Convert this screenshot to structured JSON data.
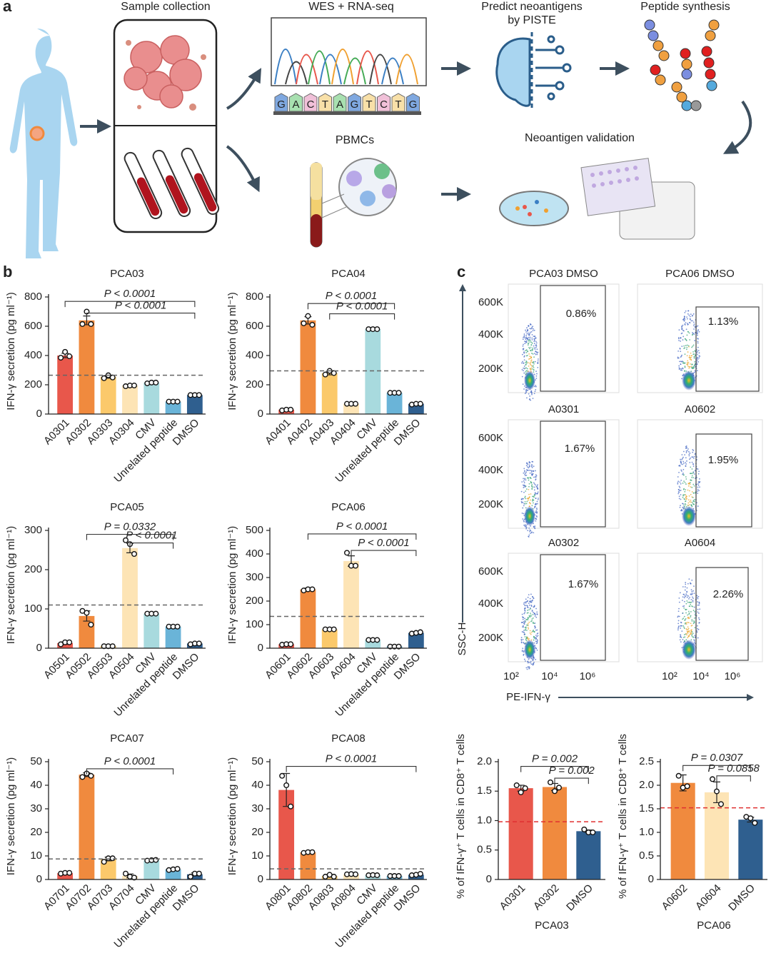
{
  "panel_labels": [
    "a",
    "b",
    "c"
  ],
  "diagram": {
    "sample": "Sample collection",
    "seq": "WES + RNA-seq",
    "predict": [
      "Predict neoantigens",
      "by PISTE"
    ],
    "synthesis": "Peptide synthesis",
    "pbmc": "PBMCs",
    "validation": "Neoantigen validation",
    "bases": [
      "G",
      "A",
      "C",
      "T",
      "A",
      "G",
      "T",
      "C",
      "T",
      "G"
    ]
  },
  "flow": {
    "y_axis_label": "SSC-H",
    "x_axis_label": "PE-IFN-γ",
    "yticks": [
      "600K",
      "400K",
      "200K"
    ],
    "xticks": [
      "10²",
      "10⁴",
      "10⁶"
    ],
    "panels": [
      {
        "title": "PCA03  DMSO",
        "percent": "0.86%"
      },
      {
        "title": "PCA06  DMSO",
        "percent": "1.13%"
      },
      {
        "title": "A0301",
        "percent": "1.67%"
      },
      {
        "title": "A0602",
        "percent": "1.95%"
      },
      {
        "title": "A0302",
        "percent": "1.67%"
      },
      {
        "title": "A0604",
        "percent": "2.26%"
      }
    ]
  },
  "chart_data": [
    {
      "type": "bar",
      "title": "PCA03",
      "y_axis_label": "IFN-γ secretion (pg ml⁻¹)",
      "categories": [
        "A0301",
        "A0302",
        "A0303",
        "A0304",
        "CMV",
        "Unrelated peptide",
        "DMSO"
      ],
      "values": [
        400,
        640,
        255,
        195,
        215,
        85,
        130
      ],
      "errors": [
        15,
        30,
        10,
        5,
        5,
        3,
        3
      ],
      "points": [
        [
          385,
          425,
          395
        ],
        [
          615,
          700,
          615
        ],
        [
          245,
          265,
          250
        ],
        [
          190,
          195,
          195
        ],
        [
          210,
          215,
          215
        ],
        [
          85,
          85,
          85
        ],
        [
          130,
          130,
          130
        ]
      ],
      "colors": [
        "#e8574b",
        "#f08a3e",
        "#fbc96b",
        "#fde4b5",
        "#a8dade",
        "#6ab4d8",
        "#2f5f8f"
      ],
      "ylim": [
        0,
        800
      ],
      "yticks": [
        0,
        200,
        400,
        600,
        800
      ],
      "threshold": 265,
      "threshold_color": "#666666",
      "annotations": [
        {
          "label": "P < 0.0001",
          "between": [
            "A0301",
            "DMSO"
          ],
          "y": 770
        },
        {
          "label": "P < 0.0001",
          "between": [
            "A0302",
            "DMSO"
          ],
          "y": 690
        }
      ]
    },
    {
      "type": "bar",
      "title": "PCA04",
      "y_axis_label": "IFN-γ secretion (pg ml⁻¹)",
      "categories": [
        "A0401",
        "A0402",
        "A0403",
        "A0404",
        "CMV",
        "Unrelated peptide",
        "DMSO"
      ],
      "values": [
        30,
        640,
        280,
        70,
        580,
        145,
        70
      ],
      "errors": [
        5,
        25,
        12,
        3,
        3,
        3,
        5
      ],
      "points": [
        [
          25,
          30,
          30
        ],
        [
          620,
          670,
          610
        ],
        [
          270,
          295,
          280
        ],
        [
          70,
          70,
          70
        ],
        [
          580,
          580,
          580
        ],
        [
          145,
          145,
          145
        ],
        [
          65,
          70,
          70
        ]
      ],
      "colors": [
        "#e8574b",
        "#f08a3e",
        "#fbc96b",
        "#fde4b5",
        "#a8dade",
        "#6ab4d8",
        "#2f5f8f"
      ],
      "ylim": [
        0,
        800
      ],
      "yticks": [
        0,
        200,
        400,
        600,
        800
      ],
      "threshold": 295,
      "threshold_color": "#666666",
      "annotations": [
        {
          "label": "P < 0.0001",
          "between": [
            "A0402",
            "Unrelated peptide"
          ],
          "y": 755
        },
        {
          "label": "P < 0.0001",
          "between": [
            "A0403",
            "Unrelated peptide"
          ],
          "y": 685
        }
      ]
    },
    {
      "type": "bar",
      "title": "PCA05",
      "y_axis_label": "IFN-γ secretion (pg ml⁻¹)",
      "categories": [
        "A0501",
        "A0502",
        "A0503",
        "A0504",
        "CMV",
        "Unrelated peptide",
        "DMSO"
      ],
      "values": [
        13,
        82,
        6,
        255,
        88,
        55,
        12
      ],
      "errors": [
        3,
        13,
        1,
        12,
        2,
        2,
        2
      ],
      "points": [
        [
          10,
          15,
          15
        ],
        [
          95,
          90,
          60
        ],
        [
          5,
          5,
          5
        ],
        [
          275,
          265,
          240
        ],
        [
          88,
          88,
          88
        ],
        [
          55,
          55,
          55
        ],
        [
          10,
          12,
          12
        ]
      ],
      "colors": [
        "#e8574b",
        "#f08a3e",
        "#fbc96b",
        "#fde4b5",
        "#a8dade",
        "#6ab4d8",
        "#2f5f8f"
      ],
      "ylim": [
        0,
        300
      ],
      "yticks": [
        0,
        100,
        200,
        300
      ],
      "threshold": 110,
      "threshold_color": "#666666",
      "annotations": [
        {
          "label": "P = 0.0332",
          "between": [
            "A0502",
            "Unrelated peptide"
          ],
          "y": 290
        },
        {
          "label": "P < 0.0001",
          "between": [
            "A0504",
            "Unrelated peptide"
          ],
          "y": 268
        }
      ]
    },
    {
      "type": "bar",
      "title": "PCA06",
      "y_axis_label": "IFN-γ secretion (pg ml⁻¹)",
      "categories": [
        "A0601",
        "A0602",
        "A0603",
        "A0604",
        "CMV",
        "Unrelated peptide",
        "DMSO"
      ],
      "values": [
        17,
        250,
        80,
        370,
        35,
        8,
        65
      ],
      "errors": [
        2,
        5,
        2,
        22,
        2,
        1,
        5
      ],
      "points": [
        [
          15,
          17,
          17
        ],
        [
          245,
          250,
          250
        ],
        [
          80,
          80,
          80
        ],
        [
          405,
          350,
          350
        ],
        [
          35,
          35,
          35
        ],
        [
          7,
          7,
          7
        ],
        [
          62,
          65,
          68
        ]
      ],
      "colors": [
        "#e8574b",
        "#f08a3e",
        "#fbc96b",
        "#fde4b5",
        "#a8dade",
        "#6ab4d8",
        "#2f5f8f"
      ],
      "ylim": [
        0,
        500
      ],
      "yticks": [
        0,
        100,
        200,
        300,
        400,
        500
      ],
      "threshold": 135,
      "threshold_color": "#666666",
      "annotations": [
        {
          "label": "P < 0.0001",
          "between": [
            "A0602",
            "DMSO"
          ],
          "y": 485
        },
        {
          "label": "P < 0.0001",
          "between": [
            "A0604",
            "DMSO"
          ],
          "y": 415
        }
      ]
    },
    {
      "type": "bar",
      "title": "PCA07",
      "y_axis_label": "IFN-γ secretion (pg ml⁻¹)",
      "categories": [
        "A0701",
        "A0702",
        "A0703",
        "A0704",
        "CMV",
        "Unrelated peptide",
        "DMSO"
      ],
      "values": [
        2.7,
        44.5,
        8.7,
        1.5,
        8.2,
        4.3,
        2.2
      ],
      "errors": [
        0.3,
        0.8,
        0.8,
        0.8,
        0.3,
        0.3,
        0.6
      ],
      "points": [
        [
          2.5,
          2.8,
          2.8
        ],
        [
          43.5,
          45,
          44
        ],
        [
          7.5,
          9,
          9
        ],
        [
          2.5,
          1.2,
          0.8
        ],
        [
          8,
          8.2,
          8.3
        ],
        [
          4,
          4.3,
          4.5
        ],
        [
          1.2,
          2.5,
          2.5
        ]
      ],
      "colors": [
        "#e8574b",
        "#f08a3e",
        "#fbc96b",
        "#fde4b5",
        "#a8dade",
        "#6ab4d8",
        "#2f5f8f"
      ],
      "ylim": [
        0,
        50
      ],
      "yticks": [
        0,
        10,
        20,
        30,
        40,
        50
      ],
      "threshold": 8.7,
      "threshold_color": "#666666",
      "annotations": [
        {
          "label": "P < 0.0001",
          "between": [
            "A0702",
            "Unrelated peptide"
          ],
          "y": 47
        }
      ]
    },
    {
      "type": "bar",
      "title": "PCA08",
      "y_axis_label": "IFN-γ secretion (pg ml⁻¹)",
      "categories": [
        "A0801",
        "A0802",
        "A0803",
        "A0804",
        "CMV",
        "Unrelated peptide",
        "DMSO"
      ],
      "values": [
        38,
        11.5,
        1.5,
        2.2,
        1.8,
        1.5,
        2
      ],
      "errors": [
        7,
        0.3,
        0.5,
        0.1,
        0.1,
        0.1,
        0.3
      ],
      "points": [
        [
          44,
          40,
          31
        ],
        [
          11.3,
          11.6,
          11.6
        ],
        [
          1.2,
          2,
          1.2
        ],
        [
          2.2,
          2.3,
          2.2
        ],
        [
          1.8,
          1.9,
          1.8
        ],
        [
          1.5,
          1.5,
          1.5
        ],
        [
          1.8,
          2,
          2.4
        ]
      ],
      "colors": [
        "#e8574b",
        "#f08a3e",
        "#fbc96b",
        "#fde4b5",
        "#a8dade",
        "#6ab4d8",
        "#2f5f8f"
      ],
      "ylim": [
        0,
        50
      ],
      "yticks": [
        0,
        10,
        20,
        30,
        40,
        50
      ],
      "threshold": 4.5,
      "threshold_color": "#666666",
      "annotations": [
        {
          "label": "P < 0.0001",
          "between": [
            "A0801",
            "DMSO"
          ],
          "y": 48
        }
      ]
    },
    {
      "type": "bar",
      "x_axis_label": "PCA03",
      "y_axis_label": "% of IFN-γ⁺ T cells in CD8⁺ T cells",
      "categories": [
        "A0301",
        "A0302",
        "DMSO"
      ],
      "values": [
        1.55,
        1.57,
        0.82
      ],
      "errors": [
        0.05,
        0.06,
        0.02
      ],
      "points": [
        [
          1.6,
          1.48,
          1.55
        ],
        [
          1.65,
          1.5,
          1.56
        ],
        [
          0.85,
          0.8,
          0.8
        ]
      ],
      "colors": [
        "#e8574b",
        "#f08a3e",
        "#2f5f8f"
      ],
      "ylim": [
        0,
        2
      ],
      "yticks": [
        0,
        0.5,
        {
          "value": 1,
          "label": "1.0"
        },
        1.5,
        {
          "value": 2,
          "label": "2.0"
        }
      ],
      "threshold": 0.98,
      "threshold_color": "#e03030",
      "annotations": [
        {
          "label": "P = 0.002",
          "between": [
            "A0301",
            "DMSO"
          ],
          "y": 1.92
        },
        {
          "label": "P = 0.002",
          "between": [
            "A0302",
            "DMSO"
          ],
          "y": 1.72
        }
      ]
    },
    {
      "type": "bar",
      "x_axis_label": "PCA06",
      "y_axis_label": "% of IFN-γ⁺ T cells in CD8⁺ T cells",
      "categories": [
        "A0602",
        "A0604",
        "DMSO"
      ],
      "values": [
        2.05,
        1.85,
        1.27
      ],
      "errors": [
        0.17,
        0.22,
        0.05
      ],
      "points": [
        [
          2.2,
          1.95,
          1.98
        ],
        [
          2.13,
          1.87,
          1.6
        ],
        [
          1.33,
          1.3,
          1.2
        ]
      ],
      "colors": [
        "#f08a3e",
        "#fde4b5",
        "#2f5f8f"
      ],
      "ylim": [
        0,
        2.5
      ],
      "yticks": [
        0,
        0.5,
        {
          "value": 1,
          "label": "1.0"
        },
        1.5,
        {
          "value": 2,
          "label": "2.0"
        },
        2.5
      ],
      "threshold": 1.52,
      "threshold_color": "#e03030",
      "annotations": [
        {
          "label": "P = 0.0307",
          "between": [
            "A0602",
            "DMSO"
          ],
          "y": 2.42
        },
        {
          "label": "P = 0.0858",
          "between": [
            "A0604",
            "DMSO"
          ],
          "y": 2.2
        }
      ]
    }
  ]
}
